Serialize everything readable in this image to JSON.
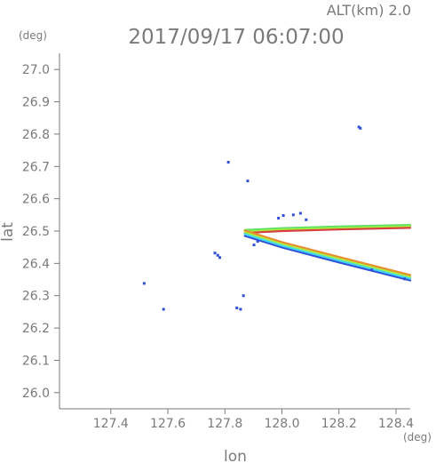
{
  "header": {
    "altitude_label": "ALT(km) 2.0",
    "timestamp": "2017/09/17 06:07:00"
  },
  "chart_data": {
    "type": "scatter",
    "title": "2017/09/17 06:07:00",
    "subtitle": "ALT(km) 2.0",
    "xlabel": "lon",
    "ylabel": "lat",
    "x_unit": "(deg)",
    "y_unit": "(deg)",
    "xlim": [
      127.22,
      128.45
    ],
    "ylim": [
      25.95,
      27.05
    ],
    "x_ticks": [
      "127.4",
      "127.6",
      "127.8",
      "128.0",
      "128.2",
      "128.4"
    ],
    "y_ticks": [
      "26.0",
      "26.1",
      "26.2",
      "26.3",
      "26.4",
      "26.5",
      "26.6",
      "26.7",
      "26.8",
      "26.9",
      "27.0"
    ],
    "grid": false,
    "colors": {
      "axis": "#7a7a7a",
      "blue": "#3050d8",
      "cyan": "#40d8f0",
      "green": "#a8f040",
      "lime": "#60e060",
      "orange": "#e89030",
      "red": "#d84040"
    },
    "scatter_points": [
      {
        "lon": 127.517,
        "lat": 26.338,
        "color": "blue"
      },
      {
        "lon": 127.585,
        "lat": 26.258,
        "color": "blue"
      },
      {
        "lon": 127.765,
        "lat": 26.432,
        "color": "blue"
      },
      {
        "lon": 127.775,
        "lat": 26.425,
        "color": "blue"
      },
      {
        "lon": 127.782,
        "lat": 26.418,
        "color": "blue"
      },
      {
        "lon": 127.812,
        "lat": 26.713,
        "color": "blue"
      },
      {
        "lon": 127.842,
        "lat": 26.262,
        "color": "blue"
      },
      {
        "lon": 127.855,
        "lat": 26.258,
        "color": "blue"
      },
      {
        "lon": 127.865,
        "lat": 26.3,
        "color": "blue"
      },
      {
        "lon": 127.88,
        "lat": 26.655,
        "color": "blue"
      },
      {
        "lon": 127.902,
        "lat": 26.457,
        "color": "blue"
      },
      {
        "lon": 127.915,
        "lat": 26.468,
        "color": "blue"
      },
      {
        "lon": 127.988,
        "lat": 26.54,
        "color": "blue"
      },
      {
        "lon": 128.005,
        "lat": 26.548,
        "color": "blue"
      },
      {
        "lon": 128.04,
        "lat": 26.55,
        "color": "blue"
      },
      {
        "lon": 128.065,
        "lat": 26.555,
        "color": "blue"
      },
      {
        "lon": 128.085,
        "lat": 26.535,
        "color": "blue"
      },
      {
        "lon": 128.27,
        "lat": 26.822,
        "color": "blue"
      },
      {
        "lon": 128.275,
        "lat": 26.818,
        "color": "blue"
      },
      {
        "lon": 128.315,
        "lat": 26.38,
        "color": "blue"
      },
      {
        "lon": 128.43,
        "lat": 26.352,
        "color": "blue"
      }
    ],
    "streaks": [
      {
        "name": "upper-streak",
        "points": [
          [
            127.87,
            26.497
          ],
          [
            128.0,
            26.503
          ],
          [
            128.2,
            26.508
          ],
          [
            128.45,
            26.513
          ]
        ],
        "bands": [
          {
            "color": "lime",
            "offset": 0.006
          },
          {
            "color": "green",
            "offset": 0.001
          },
          {
            "color": "red",
            "offset": -0.003
          }
        ]
      },
      {
        "name": "lower-streak",
        "points": [
          [
            127.87,
            26.495
          ],
          [
            128.0,
            26.459
          ],
          [
            128.2,
            26.413
          ],
          [
            128.45,
            26.357
          ]
        ],
        "bands": [
          {
            "color": "blue",
            "offset": -0.01
          },
          {
            "color": "cyan",
            "offset": -0.004
          },
          {
            "color": "green",
            "offset": 0.002
          },
          {
            "color": "orange",
            "offset": 0.007
          }
        ]
      }
    ]
  }
}
